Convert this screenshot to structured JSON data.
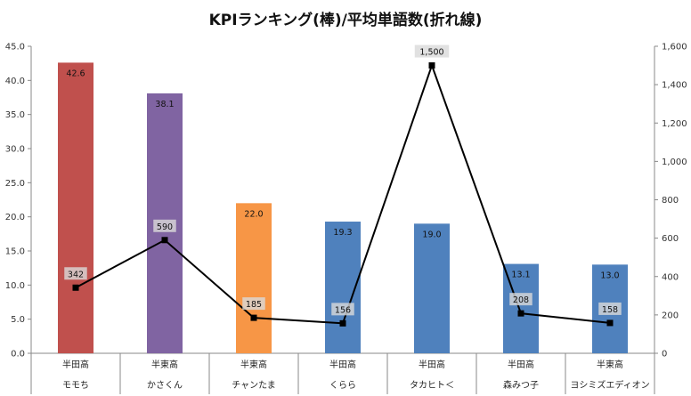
{
  "chart_data": {
    "type": "bar",
    "title": "KPIランキング(棒)/平均単語数(折れ線)",
    "categories": [
      {
        "school": "半田高",
        "name": "モモち"
      },
      {
        "school": "半東高",
        "name": "かさくん"
      },
      {
        "school": "半東高",
        "name": "チャンたま"
      },
      {
        "school": "半田高",
        "name": "くらら"
      },
      {
        "school": "半田高",
        "name": "タカヒト＜"
      },
      {
        "school": "半田高",
        "name": "森みつ子"
      },
      {
        "school": "半東高",
        "name": "ヨシミズエディオン"
      }
    ],
    "series": [
      {
        "type": "bar",
        "axis": "left",
        "values": [
          42.6,
          38.1,
          22.0,
          19.3,
          19.0,
          13.1,
          13.0
        ],
        "labels": [
          "42.6",
          "38.1",
          "22.0",
          "19.3",
          "19.0",
          "13.1",
          "13.0"
        ],
        "colors": [
          "#c0504d",
          "#8064a2",
          "#f79646",
          "#4f81bd",
          "#4f81bd",
          "#4f81bd",
          "#4f81bd"
        ]
      },
      {
        "type": "line",
        "axis": "right",
        "values": [
          342,
          590,
          185,
          156,
          1500,
          208,
          158
        ],
        "labels": [
          "342",
          "590",
          "185",
          "156",
          "1,500",
          "208",
          "158"
        ],
        "color": "#000000"
      }
    ],
    "y_left": {
      "min": 0,
      "max": 45,
      "step": 5,
      "tick_labels": [
        "0.0",
        "5.0",
        "10.0",
        "15.0",
        "20.0",
        "25.0",
        "30.0",
        "35.0",
        "40.0",
        "45.0"
      ]
    },
    "y_right": {
      "min": 0,
      "max": 1600,
      "step": 200,
      "tick_labels": [
        "0",
        "200",
        "400",
        "600",
        "800",
        "1,000",
        "1,200",
        "1,400",
        "1,600"
      ]
    },
    "grid": false,
    "legend": "none"
  }
}
